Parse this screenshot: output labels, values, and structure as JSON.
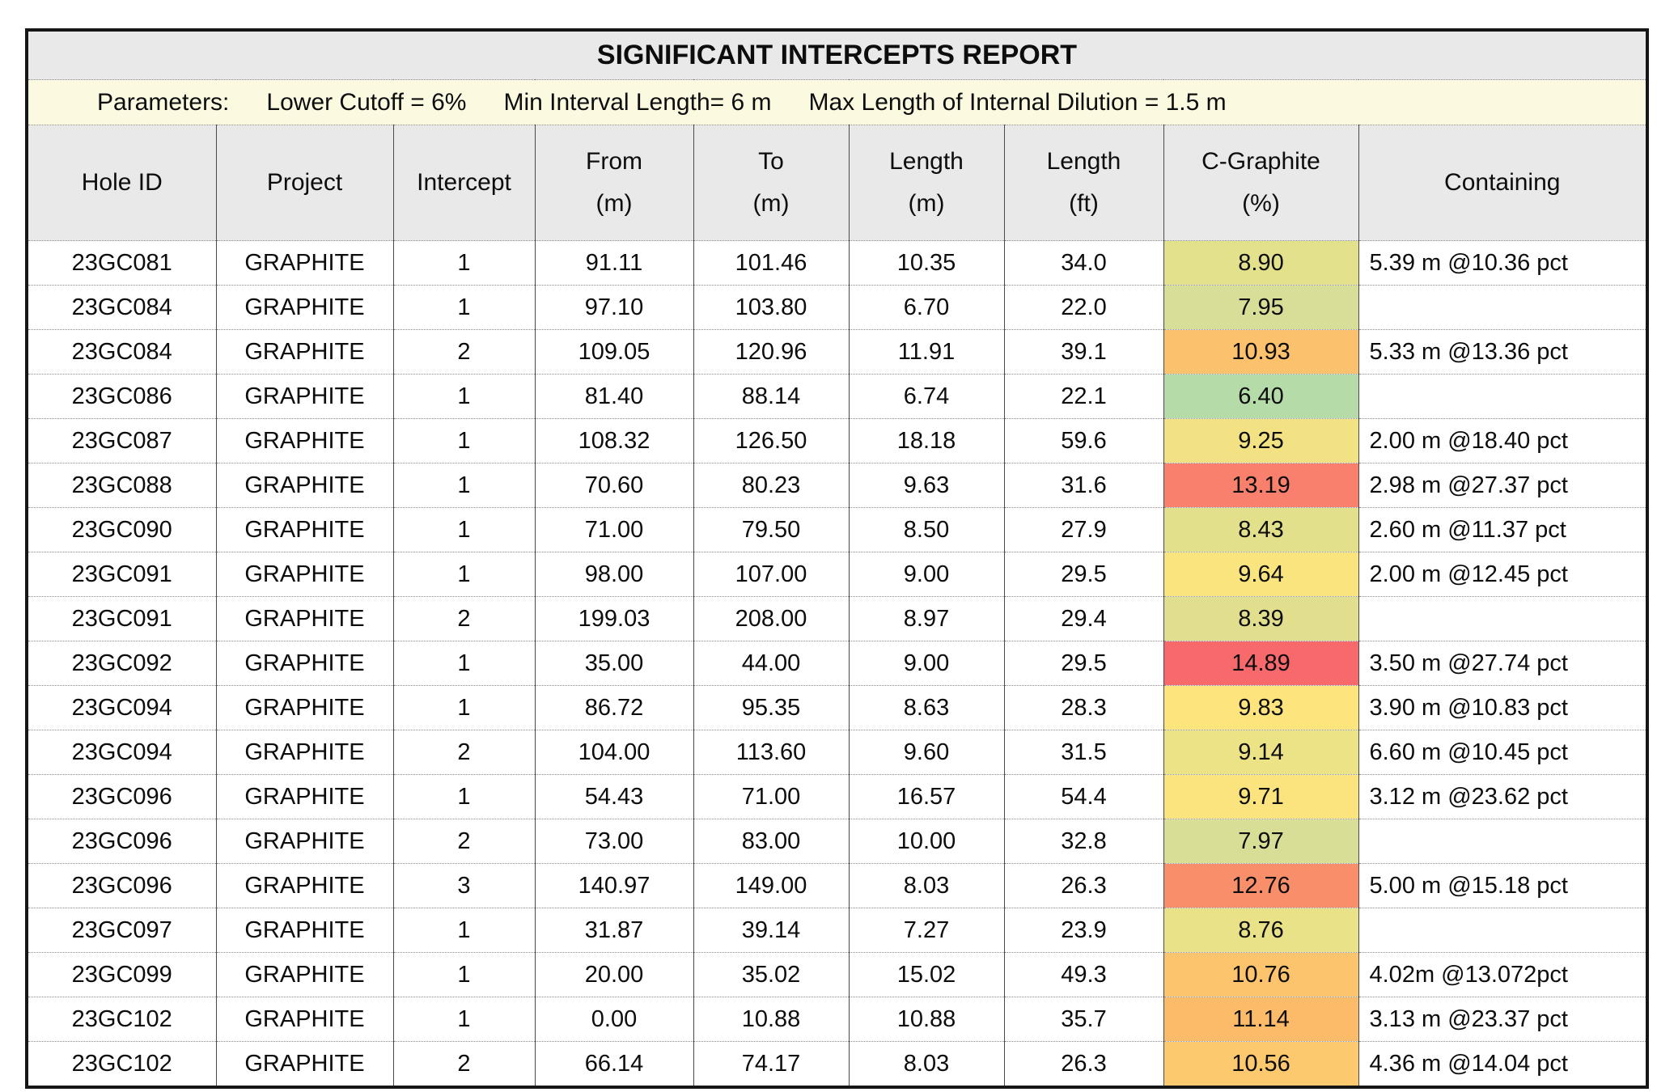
{
  "report": {
    "title": "SIGNIFICANT INTERCEPTS REPORT",
    "parameters": {
      "label": "Parameters:",
      "items": [
        "Lower Cutoff = 6%",
        "Min Interval Length= 6 m",
        "Max Length of Internal Dilution = 1.5 m"
      ]
    }
  },
  "colors": {
    "title_row_bg": "#e9e9e9",
    "parameters_row_bg": "#fbfae1",
    "header_bg": "#e9e9e9",
    "table_border": "#161616",
    "grade_scale_low": "#63be7e",
    "grade_scale_mid": "#ffeb84",
    "grade_scale_high": "#f8696b"
  },
  "table": {
    "columns": [
      {
        "id": "hole_id",
        "label": "Hole ID"
      },
      {
        "id": "project",
        "label": "Project"
      },
      {
        "id": "intercept",
        "label": "Intercept"
      },
      {
        "id": "from_m",
        "label": "From\n(m)"
      },
      {
        "id": "to_m",
        "label": "To\n(m)"
      },
      {
        "id": "length_m",
        "label": "Length\n(m)"
      },
      {
        "id": "length_ft",
        "label": "Length\n(ft)"
      },
      {
        "id": "c_graphite_pct",
        "label": "C-Graphite\n(%)"
      },
      {
        "id": "containing",
        "label": "Containing"
      }
    ],
    "rows": [
      {
        "hole_id": "23GC081",
        "project": "GRAPHITE",
        "intercept": "1",
        "from_m": "91.11",
        "to_m": "101.46",
        "length_m": "10.35",
        "length_ft": "34.0",
        "c_graphite_pct": "8.90",
        "c_graphite_color": "#e3e18c",
        "containing": "5.39 m @10.36 pct"
      },
      {
        "hole_id": "23GC084",
        "project": "GRAPHITE",
        "intercept": "1",
        "from_m": "97.10",
        "to_m": "103.80",
        "length_m": "6.70",
        "length_ft": "22.0",
        "c_graphite_pct": "7.95",
        "c_graphite_color": "#d8dd97",
        "containing": ""
      },
      {
        "hole_id": "23GC084",
        "project": "GRAPHITE",
        "intercept": "2",
        "from_m": "109.05",
        "to_m": "120.96",
        "length_m": "11.91",
        "length_ft": "39.1",
        "c_graphite_pct": "10.93",
        "c_graphite_color": "#fcc16c",
        "containing": "5.33 m @13.36 pct"
      },
      {
        "hole_id": "23GC086",
        "project": "GRAPHITE",
        "intercept": "1",
        "from_m": "81.40",
        "to_m": "88.14",
        "length_m": "6.74",
        "length_ft": "22.1",
        "c_graphite_pct": "6.40",
        "c_graphite_color": "#b5dba8",
        "containing": ""
      },
      {
        "hole_id": "23GC087",
        "project": "GRAPHITE",
        "intercept": "1",
        "from_m": "108.32",
        "to_m": "126.50",
        "length_m": "18.18",
        "length_ft": "59.6",
        "c_graphite_pct": "9.25",
        "c_graphite_color": "#f2e284",
        "containing": "2.00 m @18.40 pct"
      },
      {
        "hole_id": "23GC088",
        "project": "GRAPHITE",
        "intercept": "1",
        "from_m": "70.60",
        "to_m": "80.23",
        "length_m": "9.63",
        "length_ft": "31.6",
        "c_graphite_pct": "13.19",
        "c_graphite_color": "#f8806c",
        "containing": "2.98 m @27.37 pct"
      },
      {
        "hole_id": "23GC090",
        "project": "GRAPHITE",
        "intercept": "1",
        "from_m": "71.00",
        "to_m": "79.50",
        "length_m": "8.50",
        "length_ft": "27.9",
        "c_graphite_pct": "8.43",
        "c_graphite_color": "#e3e08c",
        "containing": "2.60 m @11.37 pct"
      },
      {
        "hole_id": "23GC091",
        "project": "GRAPHITE",
        "intercept": "1",
        "from_m": "98.00",
        "to_m": "107.00",
        "length_m": "9.00",
        "length_ft": "29.5",
        "c_graphite_pct": "9.64",
        "c_graphite_color": "#fae47e",
        "containing": "2.00 m @12.45 pct"
      },
      {
        "hole_id": "23GC091",
        "project": "GRAPHITE",
        "intercept": "2",
        "from_m": "199.03",
        "to_m": "208.00",
        "length_m": "8.97",
        "length_ft": "29.4",
        "c_graphite_pct": "8.39",
        "c_graphite_color": "#e1df8e",
        "containing": ""
      },
      {
        "hole_id": "23GC092",
        "project": "GRAPHITE",
        "intercept": "1",
        "from_m": "35.00",
        "to_m": "44.00",
        "length_m": "9.00",
        "length_ft": "29.5",
        "c_graphite_pct": "14.89",
        "c_graphite_color": "#f8696b",
        "containing": "3.50 m @27.74 pct"
      },
      {
        "hole_id": "23GC094",
        "project": "GRAPHITE",
        "intercept": "1",
        "from_m": "86.72",
        "to_m": "95.35",
        "length_m": "8.63",
        "length_ft": "28.3",
        "c_graphite_pct": "9.83",
        "c_graphite_color": "#fde47d",
        "containing": "3.90 m @10.83 pct"
      },
      {
        "hole_id": "23GC094",
        "project": "GRAPHITE",
        "intercept": "2",
        "from_m": "104.00",
        "to_m": "113.60",
        "length_m": "9.60",
        "length_ft": "31.5",
        "c_graphite_pct": "9.14",
        "c_graphite_color": "#ece286",
        "containing": "6.60 m @10.45 pct"
      },
      {
        "hole_id": "23GC096",
        "project": "GRAPHITE",
        "intercept": "1",
        "from_m": "54.43",
        "to_m": "71.00",
        "length_m": "16.57",
        "length_ft": "54.4",
        "c_graphite_pct": "9.71",
        "c_graphite_color": "#fbe37e",
        "containing": "3.12 m @23.62 pct"
      },
      {
        "hole_id": "23GC096",
        "project": "GRAPHITE",
        "intercept": "2",
        "from_m": "73.00",
        "to_m": "83.00",
        "length_m": "10.00",
        "length_ft": "32.8",
        "c_graphite_pct": "7.97",
        "c_graphite_color": "#d9de96",
        "containing": ""
      },
      {
        "hole_id": "23GC096",
        "project": "GRAPHITE",
        "intercept": "3",
        "from_m": "140.97",
        "to_m": "149.00",
        "length_m": "8.03",
        "length_ft": "26.3",
        "c_graphite_pct": "12.76",
        "c_graphite_color": "#f98f6a",
        "containing": "5.00 m @15.18 pct"
      },
      {
        "hole_id": "23GC097",
        "project": "GRAPHITE",
        "intercept": "1",
        "from_m": "31.87",
        "to_m": "39.14",
        "length_m": "7.27",
        "length_ft": "23.9",
        "c_graphite_pct": "8.76",
        "c_graphite_color": "#e9e288",
        "containing": ""
      },
      {
        "hole_id": "23GC099",
        "project": "GRAPHITE",
        "intercept": "1",
        "from_m": "20.00",
        "to_m": "35.02",
        "length_m": "15.02",
        "length_ft": "49.3",
        "c_graphite_pct": "10.76",
        "c_graphite_color": "#fcc46d",
        "containing": "4.02m @13.072pct"
      },
      {
        "hole_id": "23GC102",
        "project": "GRAPHITE",
        "intercept": "1",
        "from_m": "0.00",
        "to_m": "10.88",
        "length_m": "10.88",
        "length_ft": "35.7",
        "c_graphite_pct": "11.14",
        "c_graphite_color": "#fbbb69",
        "containing": "3.13 m @23.37 pct"
      },
      {
        "hole_id": "23GC102",
        "project": "GRAPHITE",
        "intercept": "2",
        "from_m": "66.14",
        "to_m": "74.17",
        "length_m": "8.03",
        "length_ft": "26.3",
        "c_graphite_pct": "10.56",
        "c_graphite_color": "#fcc96f",
        "containing": "4.36 m @14.04 pct"
      }
    ]
  }
}
